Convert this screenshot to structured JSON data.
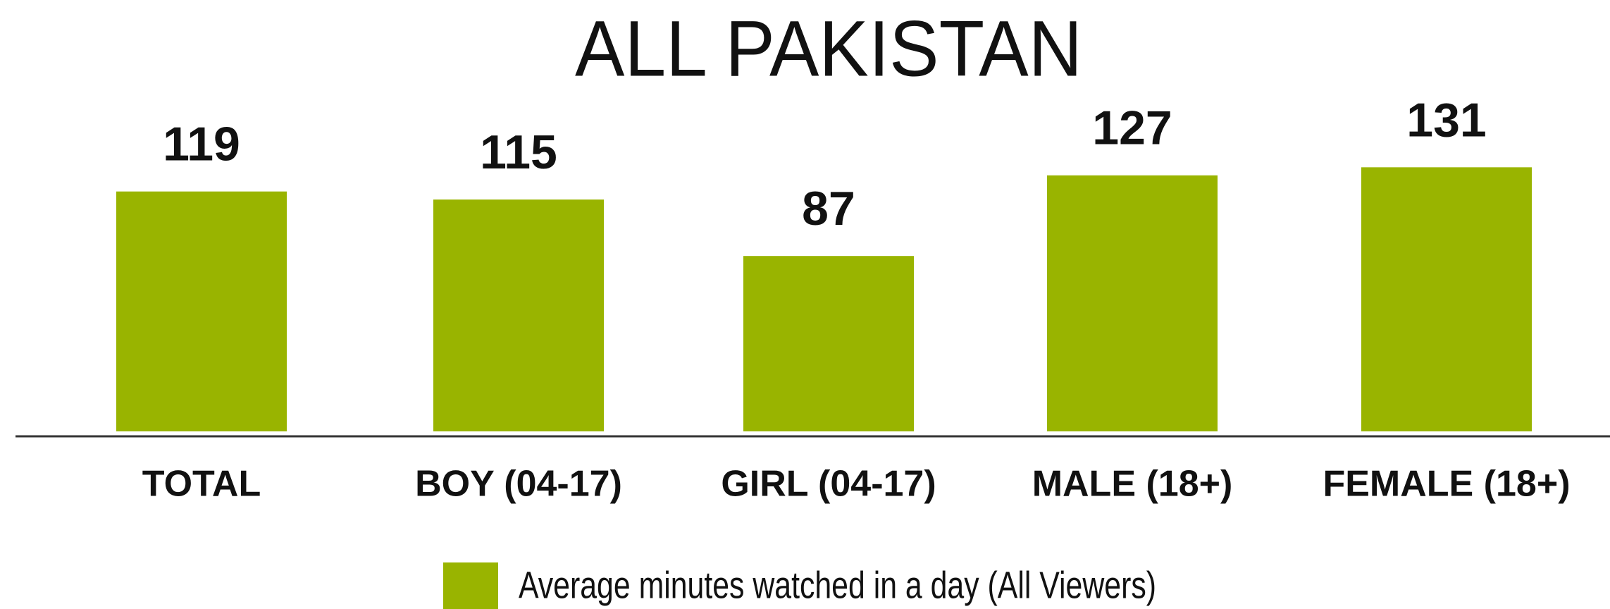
{
  "chart_data": {
    "type": "bar",
    "title": "ALL PAKISTAN",
    "categories": [
      "TOTAL",
      "BOY (04-17)",
      "GIRL (04-17)",
      "MALE (18+)",
      "FEMALE (18+)"
    ],
    "series": [
      {
        "name": "Average minutes watched in a day (All Viewers)",
        "color": "#99b400",
        "values": [
          119,
          115,
          87,
          127,
          131
        ]
      }
    ],
    "legend": "bottom"
  }
}
